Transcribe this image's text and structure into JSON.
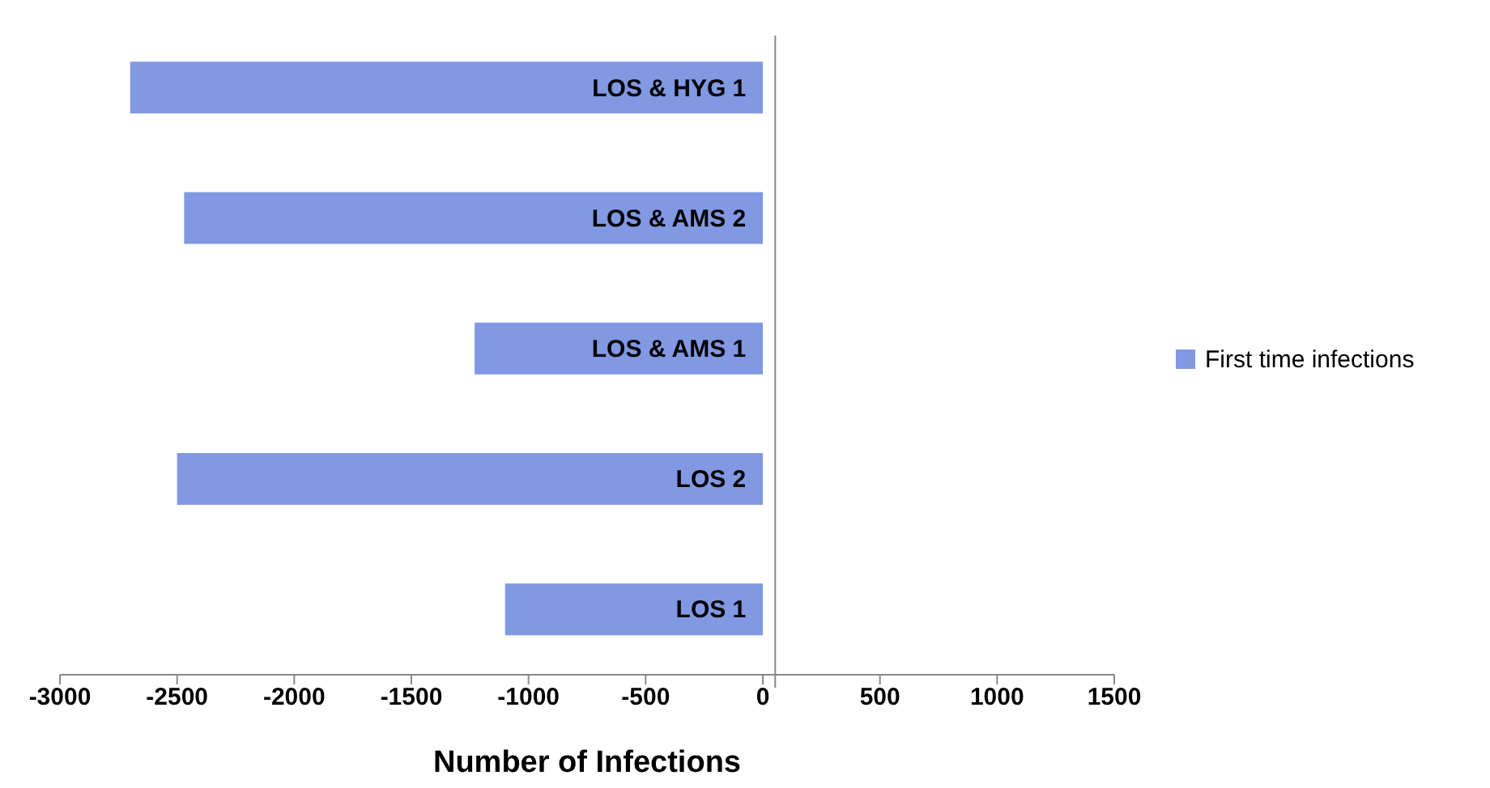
{
  "chart_data": {
    "type": "bar",
    "orientation": "horizontal",
    "xlabel": "Number of Infections",
    "categories": [
      "LOS & HYG 1",
      "LOS & AMS 2",
      "LOS & AMS 1",
      "LOS 2",
      "LOS 1"
    ],
    "series": [
      {
        "name": "First time infections",
        "color": "#8198e2",
        "values": [
          -2700,
          -2470,
          -1230,
          -2500,
          -1100
        ]
      }
    ],
    "xlim": [
      -3000,
      1500
    ],
    "xticks": [
      -3000,
      -2500,
      -2000,
      -1500,
      -1000,
      -500,
      0,
      500,
      1000,
      1500
    ],
    "grid": false,
    "legend": "right"
  }
}
